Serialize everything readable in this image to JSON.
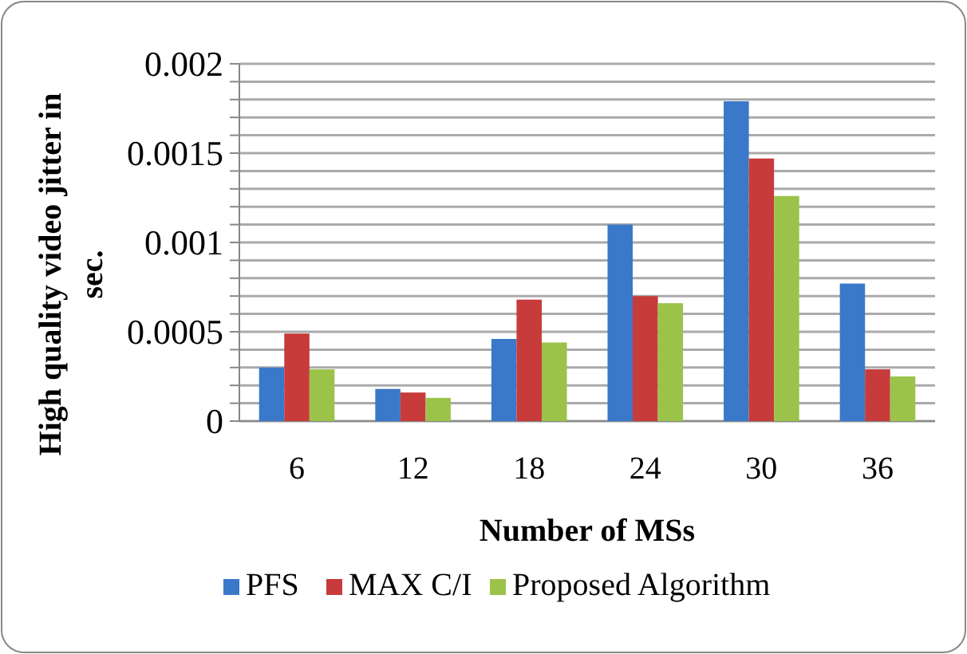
{
  "chart_data": {
    "type": "bar",
    "xlabel": "Number of MSs",
    "ylabel": "High quality video jitter in sec.",
    "categories": [
      "6",
      "12",
      "18",
      "24",
      "30",
      "36"
    ],
    "series": [
      {
        "name": "PFS",
        "color": "#3a78c9",
        "values": [
          0.0003,
          0.00018,
          0.00046,
          0.0011,
          0.00179,
          0.00077
        ]
      },
      {
        "name": "MAX C/I",
        "color": "#c73b3a",
        "values": [
          0.00049,
          0.00016,
          0.00068,
          0.0007,
          0.00147,
          0.00029
        ]
      },
      {
        "name": "Proposed Algorithm",
        "color": "#9bc34a",
        "values": [
          0.00029,
          0.00013,
          0.00044,
          0.00066,
          0.00126,
          0.00025
        ]
      }
    ],
    "ylim": [
      0,
      0.002
    ],
    "yticks": [
      0,
      {
        "value": 0.0001,
        "label": null
      },
      {
        "value": 0.0002,
        "label": null
      },
      {
        "value": 0.0003,
        "label": null
      },
      {
        "value": 0.0004,
        "label": null
      },
      0.0005,
      {
        "value": 0.0006,
        "label": null
      },
      {
        "value": 0.0007,
        "label": null
      },
      {
        "value": 0.0008,
        "label": null
      },
      {
        "value": 0.0009,
        "label": null
      },
      0.001,
      {
        "value": 0.0011,
        "label": null
      },
      {
        "value": 0.0012,
        "label": null
      },
      {
        "value": 0.0013,
        "label": null
      },
      {
        "value": 0.0014,
        "label": null
      },
      0.0015,
      {
        "value": 0.0016,
        "label": null
      },
      {
        "value": 0.0017,
        "label": null
      },
      {
        "value": 0.0018,
        "label": null
      },
      {
        "value": 0.0019,
        "label": null
      },
      0.002
    ],
    "grid": "y",
    "legend": "bottom"
  }
}
